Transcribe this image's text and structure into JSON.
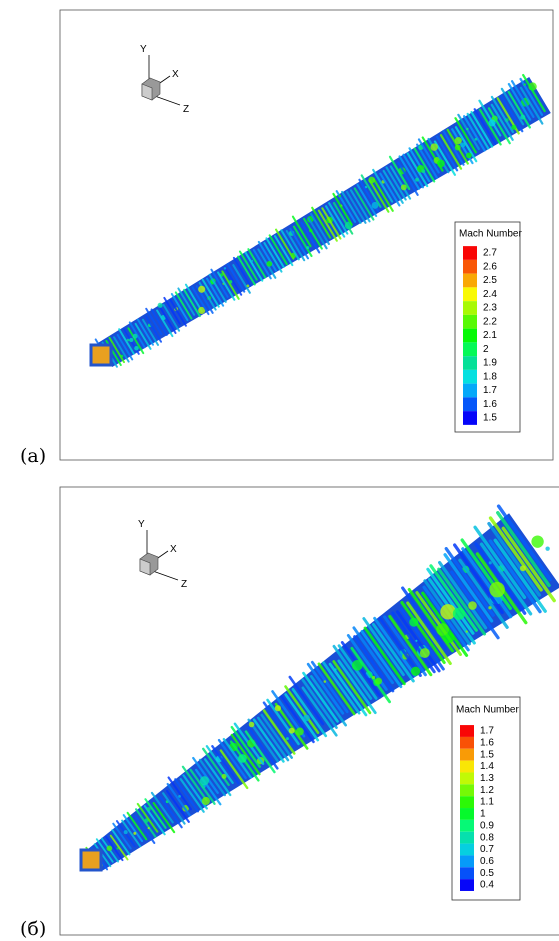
{
  "panels": [
    {
      "label": "(a)",
      "axes": {
        "y": "Y",
        "x": "X",
        "z": "Z"
      },
      "legend": {
        "title": "Mach Number",
        "entries": [
          "2.7",
          "2.6",
          "2.5",
          "2.4",
          "2.3",
          "2.2",
          "2.1",
          "2",
          "1.9",
          "1.8",
          "1.7",
          "1.6",
          "1.5"
        ]
      }
    },
    {
      "label": "(б)",
      "axes": {
        "y": "Y",
        "x": "X",
        "z": "Z"
      },
      "legend": {
        "title": "Mach Number",
        "entries": [
          "1.7",
          "1.6",
          "1.5",
          "1.4",
          "1.3",
          "1.2",
          "1.1",
          "1",
          "0.9",
          "0.8",
          "0.7",
          "0.6",
          "0.5",
          "0.4"
        ]
      }
    }
  ]
}
